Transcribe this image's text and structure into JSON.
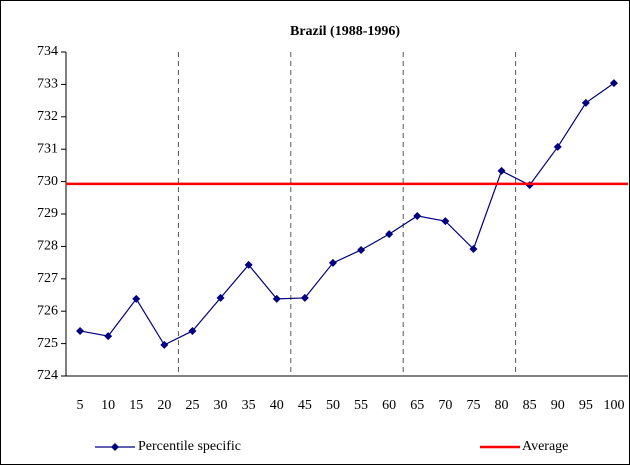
{
  "chart_data": {
    "type": "line",
    "title": "Brazil (1988-1996)",
    "categories": [
      "5",
      "10",
      "15",
      "20",
      "25",
      "30",
      "35",
      "40",
      "45",
      "50",
      "55",
      "60",
      "65",
      "70",
      "75",
      "80",
      "85",
      "90",
      "95",
      "100"
    ],
    "series": [
      {
        "name": "Percentile specific",
        "color": "#000080",
        "values": [
          725.39,
          725.23,
          726.38,
          724.96,
          725.39,
          726.41,
          727.43,
          726.38,
          726.41,
          727.49,
          727.89,
          728.38,
          728.94,
          728.78,
          727.92,
          730.33,
          729.89,
          731.07,
          732.43,
          733.04
        ]
      },
      {
        "name": "Average",
        "color": "#ff0000",
        "value": 729.93
      }
    ],
    "ylim": [
      724,
      734
    ],
    "yticks": [
      724,
      725,
      726,
      727,
      728,
      729,
      730,
      731,
      732,
      733,
      734
    ]
  }
}
